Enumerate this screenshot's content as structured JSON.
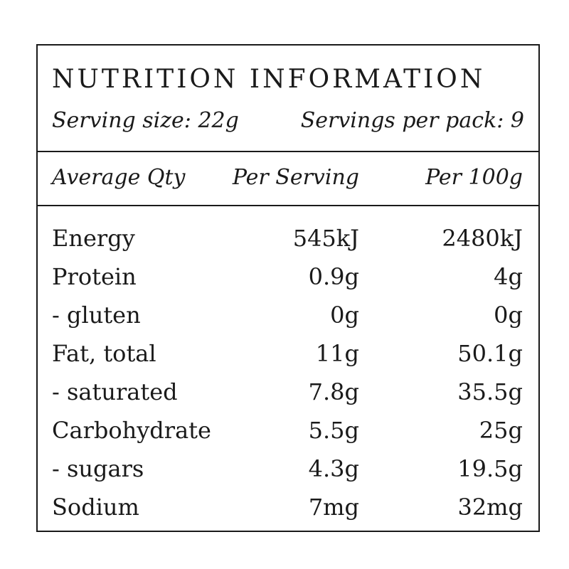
{
  "label": {
    "title": "NUTRITION INFORMATION",
    "serving_size": "Serving size: 22g",
    "servings_per_pack": "Servings per pack: 9"
  },
  "columns": {
    "quantity": "Average Qty",
    "per_serving": "Per Serving",
    "per_100g": "Per 100g"
  },
  "rows": [
    {
      "name": "Energy",
      "per_serving": "545kJ",
      "per_100g": "2480kJ"
    },
    {
      "name": "Protein",
      "per_serving": "0.9g",
      "per_100g": "4g"
    },
    {
      "name": "- gluten",
      "per_serving": "0g",
      "per_100g": "0g"
    },
    {
      "name": "Fat, total",
      "per_serving": "11g",
      "per_100g": "50.1g"
    },
    {
      "name": "- saturated",
      "per_serving": "7.8g",
      "per_100g": "35.5g"
    },
    {
      "name": "Carbohydrate",
      "per_serving": "5.5g",
      "per_100g": "25g"
    },
    {
      "name": "- sugars",
      "per_serving": "4.3g",
      "per_100g": "19.5g"
    },
    {
      "name": "Sodium",
      "per_serving": "7mg",
      "per_100g": "32mg"
    }
  ]
}
